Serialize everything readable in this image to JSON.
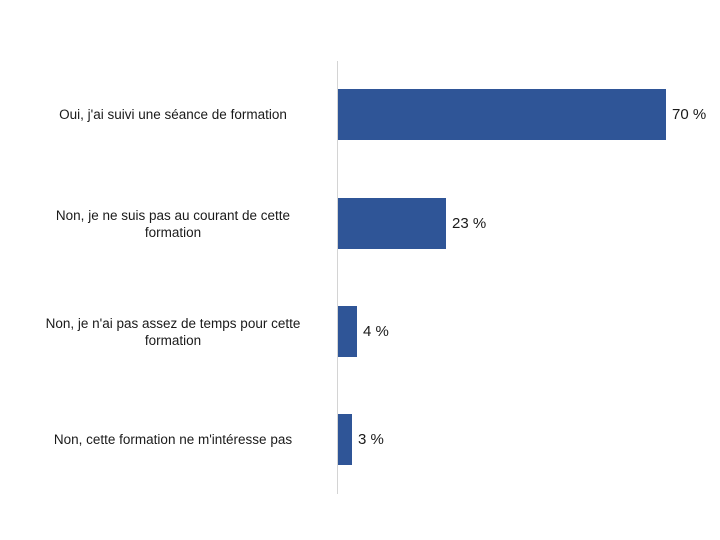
{
  "chart_data": {
    "type": "bar",
    "orientation": "horizontal",
    "title": "",
    "xlabel": "",
    "ylabel": "",
    "categories": [
      "Oui, j'ai suivi une séance de formation",
      "Non, je ne suis pas au courant de cette formation",
      "Non, je n'ai pas assez de temps pour cette formation",
      "Non, cette formation ne m'intéresse pas"
    ],
    "values": [
      70,
      23,
      4,
      3
    ],
    "value_labels": [
      "70 %",
      "23 %",
      "4 %",
      "3 %"
    ],
    "unit": "%",
    "xlim": [
      0,
      100
    ],
    "grid": false,
    "legend": null,
    "bar_color": "#2f5597"
  },
  "rows": [
    {
      "label_line1": "Oui, j'ai suivi une séance de formation",
      "label_line2": "",
      "value_label": "70 %"
    },
    {
      "label_line1": "Non, je ne suis pas au courant de cette",
      "label_line2": "formation",
      "value_label": "23 %"
    },
    {
      "label_line1": "Non, je n'ai pas assez de temps pour cette",
      "label_line2": "formation",
      "value_label": "4 %"
    },
    {
      "label_line1": "Non, cette formation ne m'intéresse pas",
      "label_line2": "",
      "value_label": "3 %"
    }
  ]
}
